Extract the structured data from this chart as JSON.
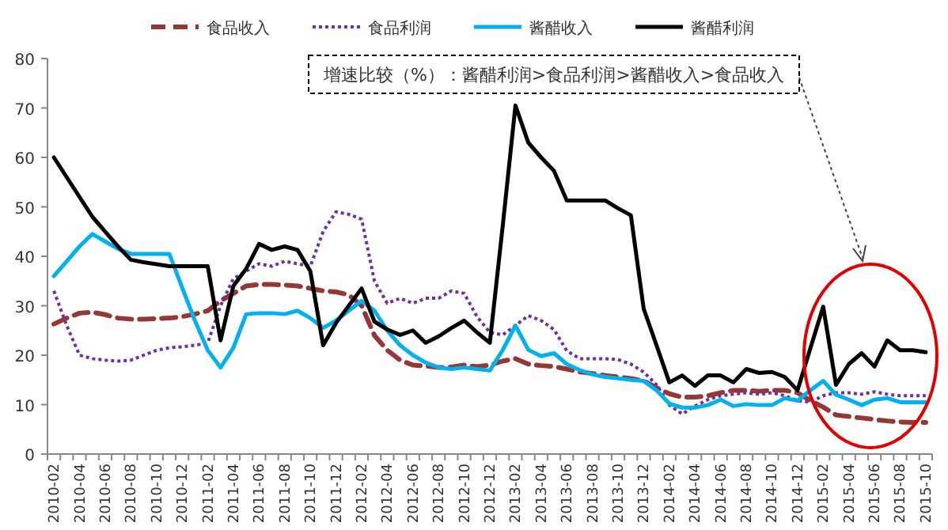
{
  "chart_data": {
    "type": "line",
    "categories": [
      "2010-02",
      null,
      "2010-04",
      null,
      "2010-06",
      null,
      "2010-08",
      null,
      "2010-10",
      null,
      "2010-12",
      null,
      "2011-02",
      null,
      "2011-04",
      null,
      "2011-06",
      null,
      "2011-08",
      null,
      "2011-10",
      null,
      "2011-12",
      null,
      "2012-02",
      null,
      "2012-04",
      null,
      "2012-06",
      null,
      "2012-08",
      null,
      "2012-10",
      null,
      "2012-12",
      null,
      "2013-02",
      null,
      "2013-04",
      null,
      "2013-06",
      null,
      "2013-08",
      null,
      "2013-10",
      null,
      "2013-12",
      null,
      "2014-02",
      null,
      "2014-04",
      null,
      "2014-06",
      null,
      "2014-08",
      null,
      "2014-10",
      null,
      "2014-12",
      null,
      "2015-02",
      null,
      "2015-04",
      null,
      "2015-06",
      null,
      "2015-08",
      null,
      "2015-10"
    ],
    "series": [
      {
        "name": "食品收入",
        "color": "#953735",
        "line_style": "dashed",
        "values": [
          26.3,
          27.5,
          28.5,
          28.7,
          28.2,
          27.5,
          27.3,
          27.3,
          27.4,
          27.5,
          27.8,
          28.3,
          29,
          31,
          32.5,
          34,
          34.3,
          34.3,
          34.2,
          34,
          33.5,
          33,
          32.8,
          32.2,
          30,
          24,
          21,
          19,
          18,
          17.8,
          17.5,
          17.6,
          18,
          17.7,
          18,
          18.8,
          19.3,
          18.2,
          17.9,
          17.7,
          17.2,
          16.6,
          16.3,
          15.9,
          15.6,
          15.3,
          14.8,
          13.4,
          12.2,
          11.5,
          11.5,
          11.8,
          12.4,
          12.9,
          12.9,
          12.7,
          12.9,
          12.9,
          12.4,
          10.8,
          9.5,
          7.9,
          7.6,
          7.3,
          7,
          6.7,
          6.5,
          6.4,
          6.4
        ]
      },
      {
        "name": "食品利润",
        "color": "#7030a0",
        "line_style": "dotted",
        "values": [
          33,
          26,
          20,
          19.3,
          19,
          18.8,
          19,
          20,
          21,
          21.5,
          21.7,
          22,
          22.5,
          30,
          35.5,
          37,
          38.5,
          38,
          39,
          38.5,
          38,
          45,
          49,
          48.5,
          47.5,
          35,
          30.5,
          31.5,
          30.5,
          31.5,
          31.5,
          33,
          32.5,
          27.8,
          24.6,
          24.1,
          26,
          28,
          27,
          25.2,
          20.9,
          19.3,
          19.3,
          19.3,
          19.1,
          18.2,
          16.6,
          14,
          9.9,
          8.1,
          9.7,
          11,
          11.8,
          12.1,
          12.4,
          12.1,
          12.4,
          11.8,
          10.8,
          10.5,
          11.8,
          12.4,
          12.4,
          12.1,
          12.6,
          12.1,
          11.8,
          11.8,
          11.8
        ]
      },
      {
        "name": "酱醋收入",
        "color": "#00b0f0",
        "line_style": "solid",
        "values": [
          36,
          39,
          42,
          44.5,
          43,
          41.5,
          40.5,
          40.5,
          40.5,
          40.5,
          33.7,
          27,
          21,
          17.5,
          21.5,
          28.3,
          28.5,
          28.5,
          28.3,
          29,
          27.5,
          25.5,
          27,
          29,
          31,
          29,
          25,
          22,
          20,
          18.5,
          17.5,
          17.2,
          17.5,
          17.2,
          16.9,
          21,
          26,
          21.1,
          19.8,
          20.4,
          18.2,
          17,
          16.1,
          15.6,
          15.3,
          15,
          14.8,
          12.9,
          10.2,
          9.4,
          9.4,
          9.9,
          11,
          9.7,
          10.1,
          9.9,
          9.9,
          11.3,
          10.8,
          12.9,
          14.8,
          12,
          11,
          9.9,
          11,
          11.3,
          10.5,
          10.5,
          10.5
        ]
      },
      {
        "name": "酱醋利润",
        "color": "#000000",
        "line_style": "solid",
        "values": [
          60,
          56,
          52,
          48,
          45,
          42,
          39.3,
          38.8,
          38.4,
          38,
          38,
          38,
          38,
          23,
          34,
          37.5,
          42.5,
          41.3,
          42,
          41.3,
          37,
          22,
          26.5,
          30,
          33.5,
          26.8,
          25.2,
          24.1,
          25,
          22.5,
          23.8,
          25.5,
          27,
          24.6,
          22.5,
          46,
          70.5,
          63,
          60,
          57.3,
          51.3,
          51.3,
          51.3,
          51.3,
          49.7,
          48.3,
          29.4,
          22,
          14.5,
          15.9,
          13.8,
          15.9,
          15.9,
          14.5,
          17.2,
          16.4,
          16.6,
          15.6,
          12.9,
          21.4,
          29.8,
          14,
          18.2,
          20.4,
          17.7,
          23,
          21,
          21,
          20.6
        ]
      }
    ],
    "ylim": [
      0,
      80
    ],
    "yticks": [
      0,
      10,
      20,
      30,
      40,
      50,
      60,
      70,
      80
    ],
    "legend": "top",
    "annotations": [
      "增速比较（%）：酱醋利润>食品利润>酱醋收入>食品收入"
    ]
  }
}
